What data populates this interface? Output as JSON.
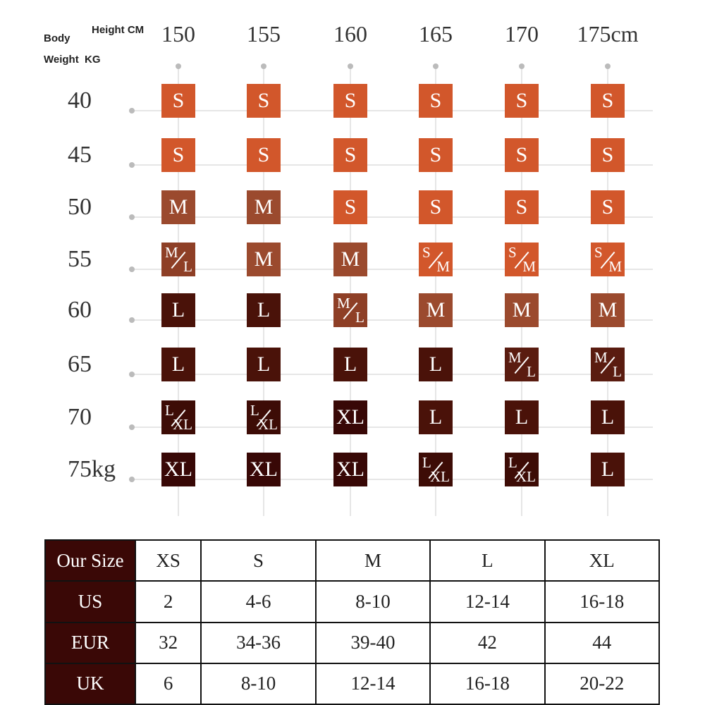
{
  "header": {
    "body": "Body",
    "weight": "Weight  KG",
    "height": "Height CM"
  },
  "heights": [
    "150",
    "155",
    "160",
    "165",
    "170",
    "175cm"
  ],
  "weights": [
    "40",
    "45",
    "50",
    "55",
    "60",
    "65",
    "70",
    "75kg"
  ],
  "grid": [
    [
      {
        "text": "S",
        "color": "#d2572b"
      },
      {
        "text": "S",
        "color": "#d2572b"
      },
      {
        "text": "S",
        "color": "#d2572b"
      },
      {
        "text": "S",
        "color": "#d2572b"
      },
      {
        "text": "S",
        "color": "#d2572b"
      },
      {
        "text": "S",
        "color": "#d2572b"
      }
    ],
    [
      {
        "text": "S",
        "color": "#d2572b"
      },
      {
        "text": "S",
        "color": "#d2572b"
      },
      {
        "text": "S",
        "color": "#d2572b"
      },
      {
        "text": "S",
        "color": "#d2572b"
      },
      {
        "text": "S",
        "color": "#d2572b"
      },
      {
        "text": "S",
        "color": "#d2572b"
      }
    ],
    [
      {
        "text": "M",
        "color": "#9b4a2e"
      },
      {
        "text": "M",
        "color": "#9b4a2e"
      },
      {
        "text": "S",
        "color": "#d2572b"
      },
      {
        "text": "S",
        "color": "#d2572b"
      },
      {
        "text": "S",
        "color": "#d2572b"
      },
      {
        "text": "S",
        "color": "#d2572b"
      }
    ],
    [
      {
        "upper": "M",
        "lower": "L",
        "color": "#8e3f26"
      },
      {
        "text": "M",
        "color": "#9b4a2e"
      },
      {
        "text": "M",
        "color": "#9b4a2e"
      },
      {
        "upper": "S",
        "lower": "M",
        "color": "#d2572b"
      },
      {
        "upper": "S",
        "lower": "M",
        "color": "#d2572b"
      },
      {
        "upper": "S",
        "lower": "M",
        "color": "#d2572b"
      }
    ],
    [
      {
        "text": "L",
        "color": "#4a1209"
      },
      {
        "text": "L",
        "color": "#4a1209"
      },
      {
        "upper": "M",
        "lower": "L",
        "color": "#8e3f26"
      },
      {
        "text": "M",
        "color": "#9b4a2e"
      },
      {
        "text": "M",
        "color": "#9b4a2e"
      },
      {
        "text": "M",
        "color": "#9b4a2e"
      }
    ],
    [
      {
        "text": "L",
        "color": "#4a1209"
      },
      {
        "text": "L",
        "color": "#4a1209"
      },
      {
        "text": "L",
        "color": "#4a1209"
      },
      {
        "text": "L",
        "color": "#4a1209"
      },
      {
        "upper": "M",
        "lower": "L",
        "color": "#5a1c10"
      },
      {
        "upper": "M",
        "lower": "L",
        "color": "#5a1c10"
      }
    ],
    [
      {
        "upper": "L",
        "lower": "XL",
        "color": "#3d0c06"
      },
      {
        "upper": "L",
        "lower": "XL",
        "color": "#3d0c06"
      },
      {
        "text": "XL",
        "color": "#380806"
      },
      {
        "text": "L",
        "color": "#4a1209"
      },
      {
        "text": "L",
        "color": "#4a1209"
      },
      {
        "text": "L",
        "color": "#4a1209"
      }
    ],
    [
      {
        "text": "XL",
        "color": "#380806"
      },
      {
        "text": "XL",
        "color": "#380806"
      },
      {
        "text": "XL",
        "color": "#380806"
      },
      {
        "upper": "L",
        "lower": "XL",
        "color": "#3d0c06"
      },
      {
        "upper": "L",
        "lower": "XL",
        "color": "#3d0c06"
      },
      {
        "text": "L",
        "color": "#4a1209"
      }
    ]
  ],
  "table": {
    "rows": [
      [
        "Our Size",
        "XS",
        "S",
        "M",
        "L",
        "XL"
      ],
      [
        "US",
        "2",
        "4-6",
        "8-10",
        "12-14",
        "16-18"
      ],
      [
        "EUR",
        "32",
        "34-36",
        "39-40",
        "42",
        "44"
      ],
      [
        "UK",
        "6",
        "8-10",
        "12-14",
        "16-18",
        "20-22"
      ]
    ]
  }
}
